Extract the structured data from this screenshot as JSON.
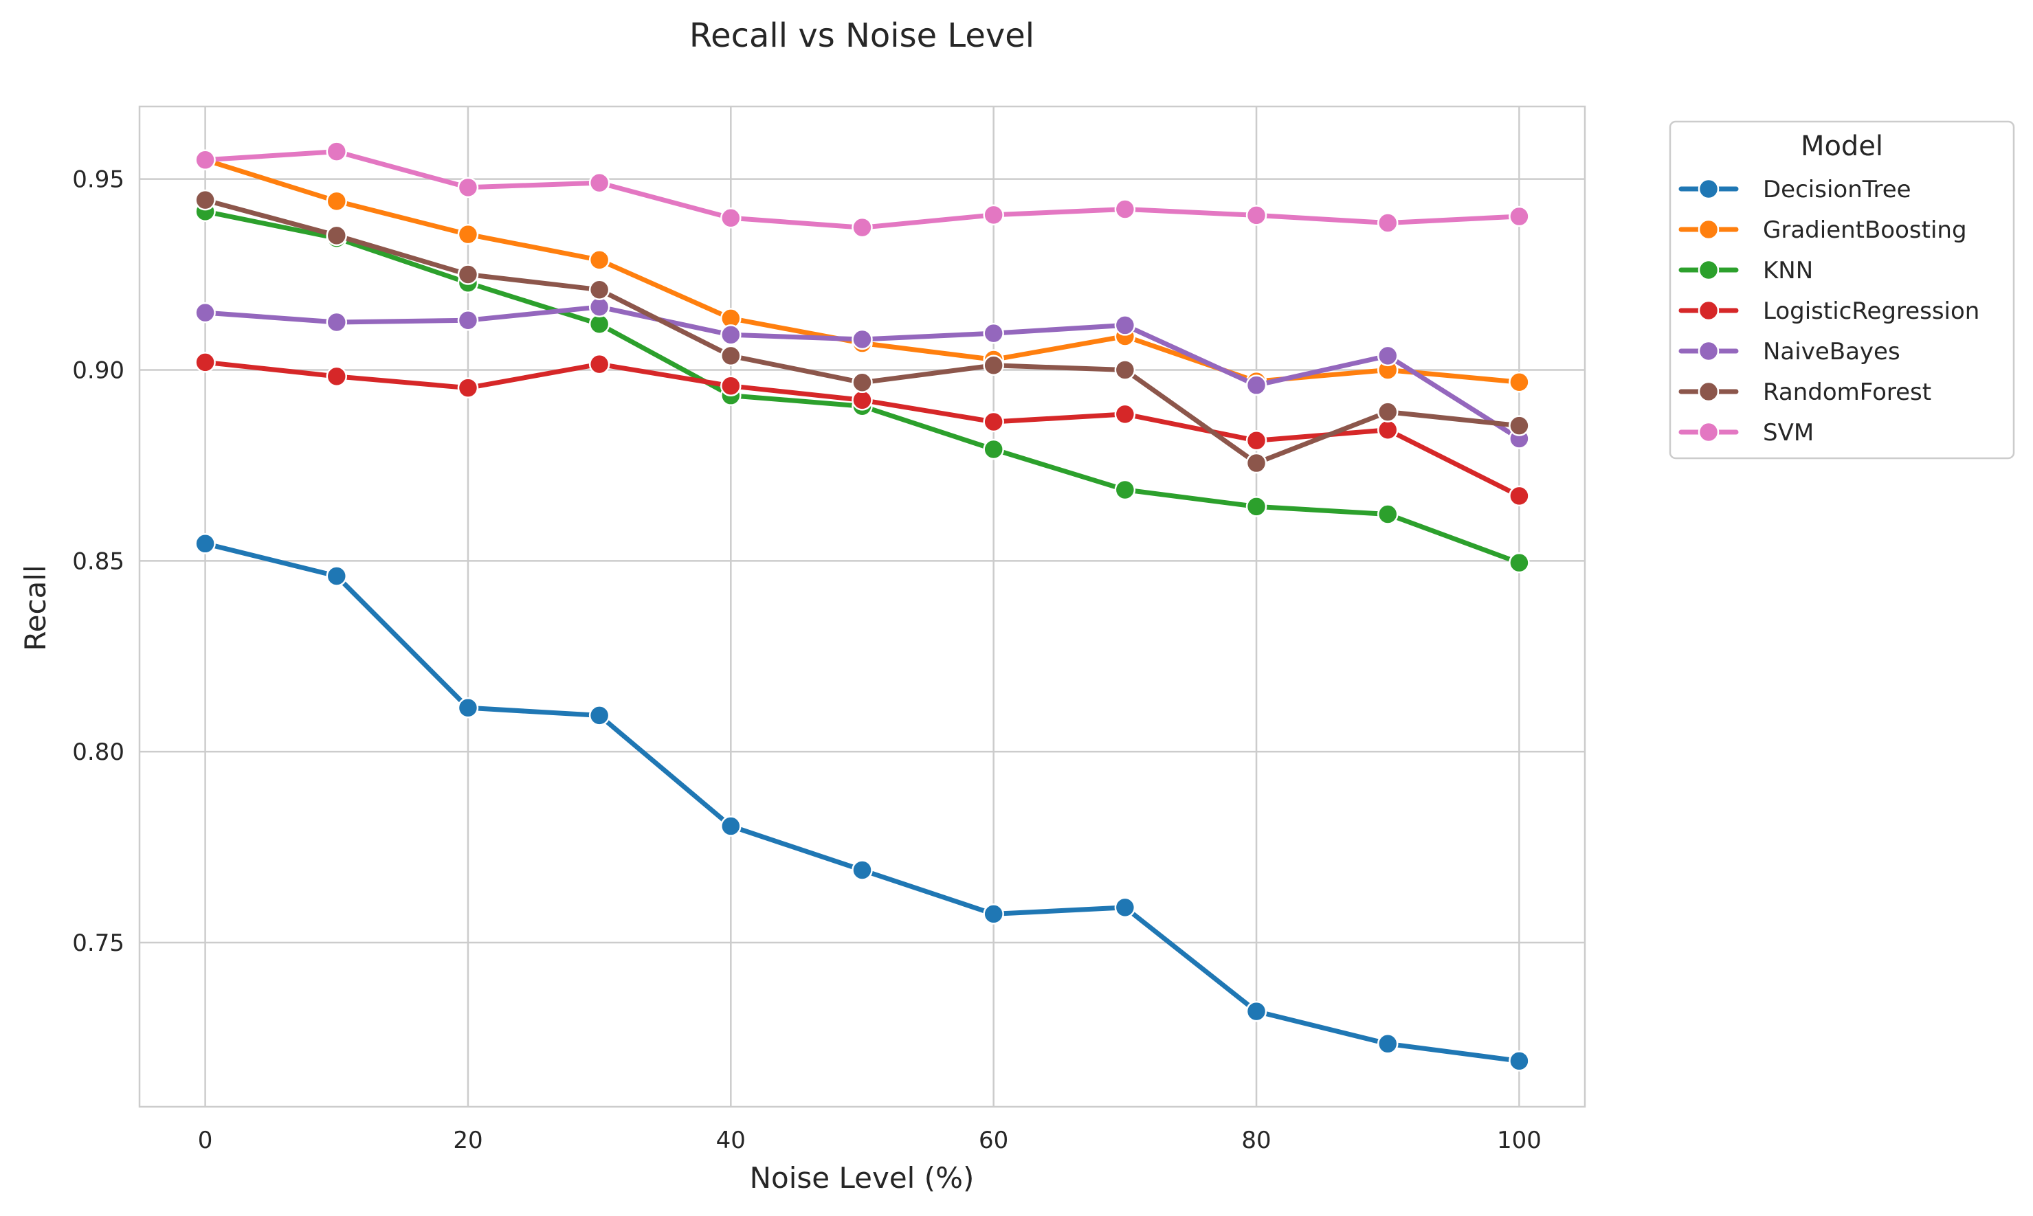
{
  "chart_data": {
    "type": "line",
    "title": "Recall vs Noise Level",
    "xlabel": "Noise Level (%)",
    "ylabel": "Recall",
    "x": [
      0,
      10,
      20,
      30,
      40,
      50,
      60,
      70,
      80,
      90,
      100
    ],
    "xlim": [
      -5,
      105
    ],
    "ylim": [
      0.707,
      0.969
    ],
    "xticks": [
      0,
      20,
      40,
      60,
      80,
      100
    ],
    "yticks": [
      0.75,
      0.8,
      0.85,
      0.9,
      0.95
    ],
    "xtick_labels": [
      "0",
      "20",
      "40",
      "60",
      "80",
      "100"
    ],
    "ytick_labels": [
      "0.75",
      "0.80",
      "0.85",
      "0.90",
      "0.95"
    ],
    "grid": true,
    "legend": {
      "title": "Model",
      "placement": "outside-right-top"
    },
    "series": [
      {
        "name": "DecisionTree",
        "color": "#1f77b4",
        "values": [
          0.8545,
          0.846,
          0.8115,
          0.8095,
          0.7805,
          0.769,
          0.7575,
          0.7592,
          0.732,
          0.7235,
          0.719
        ]
      },
      {
        "name": "GradientBoosting",
        "color": "#ff7f0e",
        "values": [
          0.955,
          0.9442,
          0.9355,
          0.9288,
          0.9135,
          0.907,
          0.9027,
          0.9088,
          0.897,
          0.9,
          0.8968
        ]
      },
      {
        "name": "KNN",
        "color": "#2ca02c",
        "values": [
          0.9415,
          0.9345,
          0.9228,
          0.912,
          0.8933,
          0.8905,
          0.8792,
          0.8686,
          0.8642,
          0.8622,
          0.8495
        ]
      },
      {
        "name": "LogisticRegression",
        "color": "#d62728",
        "values": [
          0.902,
          0.8983,
          0.8953,
          0.9015,
          0.8958,
          0.8921,
          0.8864,
          0.8884,
          0.8815,
          0.8843,
          0.867
        ]
      },
      {
        "name": "NaiveBayes",
        "color": "#9467bd",
        "values": [
          0.915,
          0.9125,
          0.913,
          0.9165,
          0.9092,
          0.908,
          0.9096,
          0.9117,
          0.896,
          0.9037,
          0.882
        ]
      },
      {
        "name": "RandomForest",
        "color": "#8c564b",
        "values": [
          0.9445,
          0.9352,
          0.925,
          0.921,
          0.9037,
          0.8967,
          0.9012,
          0.9,
          0.8756,
          0.889,
          0.8854
        ]
      },
      {
        "name": "SVM",
        "color": "#e377c2",
        "values": [
          0.955,
          0.9572,
          0.9478,
          0.949,
          0.9398,
          0.9373,
          0.9406,
          0.9421,
          0.9405,
          0.9385,
          0.9402
        ]
      }
    ]
  }
}
